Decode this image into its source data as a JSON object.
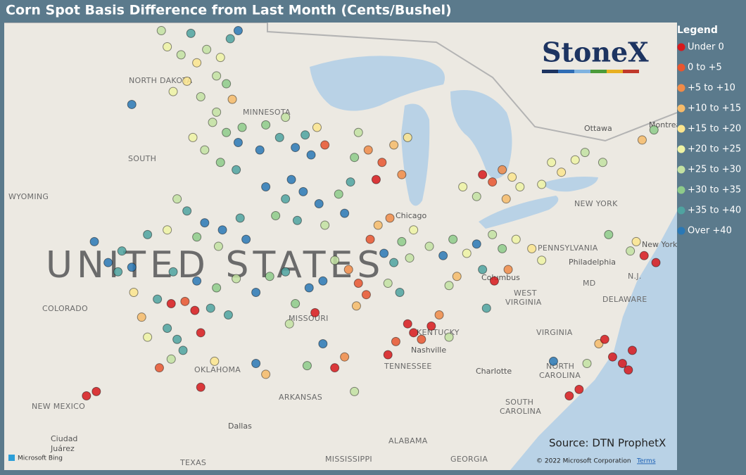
{
  "title": "Corn Spot Basis Difference from Last Month (Cents/Bushel)",
  "legend": {
    "title": "Legend",
    "items": [
      {
        "label": "Under 0",
        "color": "#d7191c"
      },
      {
        "label": "0 to +5",
        "color": "#e8552f"
      },
      {
        "label": "+5 to +10",
        "color": "#f08b48"
      },
      {
        "label": "+10 to +15",
        "color": "#f6bb6a"
      },
      {
        "label": "+15 to +20",
        "color": "#fbe58e"
      },
      {
        "label": "+20 to +25",
        "color": "#eef3a4"
      },
      {
        "label": "+25 to +30",
        "color": "#c3e2a2"
      },
      {
        "label": "+30 to +35",
        "color": "#8ecb8a"
      },
      {
        "label": "+35 to +40",
        "color": "#4fa3a0"
      },
      {
        "label": "Over +40",
        "color": "#2a78b5"
      }
    ]
  },
  "logo": "StoneX",
  "source": "Source: DTN ProphetX",
  "attribution": {
    "bing": "Microsoft Bing",
    "copyright": "© 2022 Microsoft Corporation",
    "terms": "Terms"
  },
  "map": {
    "labels": [
      "NORTH DAKOTA",
      "SOUTH",
      "MINNESOTA",
      "WYOMING",
      "UNITED STATES",
      "COLORADO",
      "MISSOURI",
      "KENTUCKY",
      "TENNESSEE",
      "OKLAHOMA",
      "ARKANSAS",
      "NEW MEXICO",
      "TEXAS",
      "Dallas",
      "Ciudad",
      "Juárez",
      "ALABAMA",
      "MISSISSIPPI",
      "GEORGIA",
      "SOUTH",
      "CAROLINA",
      "NORTH",
      "CAROLINA",
      "VIRGINIA",
      "WEST",
      "VIRGINIA",
      "Columbus",
      "PENNSYLVANIA",
      "NEW YORK",
      "Philadelphia",
      "MD",
      "DELAWARE",
      "Nashville",
      "Charlotte",
      "Chicago",
      "Ottawa",
      "Montreal",
      "New York",
      "N.J."
    ],
    "points": [
      [
        -100.5,
        48.3,
        5
      ],
      [
        -99.8,
        48.0,
        6
      ],
      [
        -99.0,
        47.7,
        4
      ],
      [
        -98.5,
        48.2,
        6
      ],
      [
        -97.8,
        47.9,
        5
      ],
      [
        -97.3,
        48.6,
        8
      ],
      [
        -98.0,
        47.2,
        6
      ],
      [
        -99.5,
        47.0,
        4
      ],
      [
        -100.2,
        46.6,
        5
      ],
      [
        -97.5,
        46.9,
        7
      ],
      [
        -98.8,
        46.4,
        6
      ],
      [
        -97.2,
        46.3,
        3
      ],
      [
        -99.3,
        48.8,
        8
      ],
      [
        -96.9,
        48.9,
        9
      ],
      [
        -102.3,
        46.1,
        9
      ],
      [
        -100.8,
        48.9,
        6
      ],
      [
        -98.2,
        45.4,
        6
      ],
      [
        -97.5,
        45.0,
        7
      ],
      [
        -96.9,
        44.6,
        9
      ],
      [
        -98.6,
        44.3,
        6
      ],
      [
        -97.8,
        43.8,
        7
      ],
      [
        -97.0,
        43.5,
        8
      ],
      [
        -99.2,
        44.8,
        5
      ],
      [
        -98.0,
        45.8,
        6
      ],
      [
        -96.7,
        45.2,
        7
      ],
      [
        -95.5,
        45.3,
        7
      ],
      [
        -94.8,
        44.8,
        8
      ],
      [
        -94.0,
        44.4,
        9
      ],
      [
        -93.5,
        44.9,
        8
      ],
      [
        -95.8,
        44.3,
        9
      ],
      [
        -93.2,
        44.1,
        9
      ],
      [
        -92.5,
        44.5,
        1
      ],
      [
        -94.5,
        45.6,
        6
      ],
      [
        -92.9,
        45.2,
        4
      ],
      [
        -95.5,
        42.8,
        9
      ],
      [
        -94.5,
        42.3,
        8
      ],
      [
        -93.6,
        42.6,
        9
      ],
      [
        -92.8,
        42.1,
        9
      ],
      [
        -91.8,
        42.5,
        7
      ],
      [
        -95.0,
        41.6,
        7
      ],
      [
        -93.9,
        41.4,
        8
      ],
      [
        -92.5,
        41.2,
        6
      ],
      [
        -91.5,
        41.7,
        9
      ],
      [
        -94.2,
        43.1,
        9
      ],
      [
        -91.2,
        43.0,
        8
      ],
      [
        -90.3,
        44.3,
        2
      ],
      [
        -89.6,
        43.8,
        1
      ],
      [
        -89.0,
        44.5,
        3
      ],
      [
        -90.8,
        45.0,
        6
      ],
      [
        -88.6,
        43.3,
        2
      ],
      [
        -89.9,
        43.1,
        0
      ],
      [
        -91.0,
        44.0,
        7
      ],
      [
        -88.3,
        44.8,
        4
      ],
      [
        -99.5,
        41.8,
        8
      ],
      [
        -98.6,
        41.3,
        9
      ],
      [
        -97.7,
        41.0,
        9
      ],
      [
        -96.8,
        41.5,
        8
      ],
      [
        -99.0,
        40.7,
        7
      ],
      [
        -97.9,
        40.3,
        6
      ],
      [
        -100.5,
        41.0,
        5
      ],
      [
        -101.5,
        40.8,
        8
      ],
      [
        -96.5,
        40.6,
        9
      ],
      [
        -100.0,
        42.3,
        6
      ],
      [
        -100.2,
        39.2,
        8
      ],
      [
        -99.0,
        38.8,
        9
      ],
      [
        -98.0,
        38.5,
        7
      ],
      [
        -97.0,
        38.9,
        6
      ],
      [
        -96.0,
        38.3,
        9
      ],
      [
        -95.3,
        39.0,
        7
      ],
      [
        -101.0,
        38.0,
        8
      ],
      [
        -100.3,
        37.8,
        0
      ],
      [
        -99.6,
        37.9,
        1
      ],
      [
        -99.1,
        37.5,
        0
      ],
      [
        -98.3,
        37.6,
        8
      ],
      [
        -97.4,
        37.3,
        8
      ],
      [
        -101.8,
        37.2,
        3
      ],
      [
        -102.2,
        38.3,
        4
      ],
      [
        -103.5,
        39.6,
        9
      ],
      [
        -102.8,
        40.1,
        8
      ],
      [
        -104.2,
        40.5,
        9
      ],
      [
        -103.0,
        39.2,
        8
      ],
      [
        -102.3,
        39.4,
        9
      ],
      [
        -100.5,
        36.7,
        8
      ],
      [
        -100.0,
        36.2,
        8
      ],
      [
        -99.7,
        35.7,
        8
      ],
      [
        -100.3,
        35.3,
        6
      ],
      [
        -101.5,
        36.3,
        5
      ],
      [
        -98.8,
        36.5,
        0
      ],
      [
        -98.1,
        35.2,
        4
      ],
      [
        -100.9,
        34.9,
        1
      ],
      [
        -104.6,
        33.6,
        0
      ],
      [
        -104.1,
        33.8,
        0
      ],
      [
        -98.8,
        34.0,
        0
      ],
      [
        -95.5,
        34.6,
        3
      ],
      [
        -96.0,
        35.1,
        9
      ],
      [
        -93.3,
        38.5,
        9
      ],
      [
        -92.6,
        38.8,
        9
      ],
      [
        -94.0,
        37.8,
        7
      ],
      [
        -93.0,
        37.4,
        0
      ],
      [
        -94.5,
        39.2,
        8
      ],
      [
        -92.0,
        39.7,
        6
      ],
      [
        -91.3,
        39.3,
        2
      ],
      [
        -90.8,
        38.7,
        1
      ],
      [
        -90.4,
        38.2,
        1
      ],
      [
        -90.9,
        37.7,
        3
      ],
      [
        -94.3,
        36.9,
        6
      ],
      [
        -89.5,
        40.0,
        9
      ],
      [
        -89.0,
        39.6,
        8
      ],
      [
        -88.6,
        40.5,
        7
      ],
      [
        -88.2,
        39.8,
        6
      ],
      [
        -89.8,
        41.2,
        3
      ],
      [
        -90.2,
        40.6,
        1
      ],
      [
        -89.2,
        41.5,
        2
      ],
      [
        -88.0,
        41.0,
        5
      ],
      [
        -89.3,
        38.7,
        6
      ],
      [
        -88.7,
        38.3,
        8
      ],
      [
        -87.2,
        40.3,
        6
      ],
      [
        -86.5,
        39.9,
        9
      ],
      [
        -86.0,
        40.6,
        7
      ],
      [
        -85.3,
        40.0,
        5
      ],
      [
        -84.8,
        40.4,
        9
      ],
      [
        -84.0,
        40.8,
        6
      ],
      [
        -83.5,
        40.2,
        7
      ],
      [
        -82.8,
        40.6,
        5
      ],
      [
        -82.0,
        40.2,
        4
      ],
      [
        -81.5,
        39.7,
        5
      ],
      [
        -85.8,
        39.0,
        3
      ],
      [
        -84.5,
        39.3,
        8
      ],
      [
        -83.2,
        39.3,
        2
      ],
      [
        -83.9,
        38.8,
        0
      ],
      [
        -86.2,
        38.6,
        6
      ],
      [
        -84.5,
        43.3,
        0
      ],
      [
        -84.0,
        43.0,
        1
      ],
      [
        -83.5,
        43.5,
        2
      ],
      [
        -83.0,
        43.2,
        4
      ],
      [
        -82.6,
        42.8,
        5
      ],
      [
        -84.8,
        42.4,
        6
      ],
      [
        -85.5,
        42.8,
        5
      ],
      [
        -83.3,
        42.3,
        3
      ],
      [
        -81.0,
        43.8,
        5
      ],
      [
        -80.5,
        43.4,
        4
      ],
      [
        -79.8,
        43.9,
        5
      ],
      [
        -79.3,
        44.2,
        6
      ],
      [
        -81.5,
        42.9,
        5
      ],
      [
        -78.4,
        43.8,
        6
      ],
      [
        -76.4,
        44.7,
        3
      ],
      [
        -75.8,
        45.1,
        7
      ],
      [
        -88.3,
        36.9,
        0
      ],
      [
        -88.0,
        36.5,
        0
      ],
      [
        -87.6,
        36.2,
        1
      ],
      [
        -87.1,
        36.8,
        0
      ],
      [
        -86.7,
        37.3,
        2
      ],
      [
        -88.9,
        36.1,
        1
      ],
      [
        -89.3,
        35.5,
        0
      ],
      [
        -86.2,
        36.3,
        6
      ],
      [
        -84.3,
        37.6,
        8
      ],
      [
        -91.5,
        35.4,
        2
      ],
      [
        -92.0,
        34.9,
        0
      ],
      [
        -92.6,
        36.0,
        9
      ],
      [
        -91.0,
        33.8,
        6
      ],
      [
        -93.4,
        35.0,
        7
      ],
      [
        -77.0,
        40.1,
        6
      ],
      [
        -76.3,
        39.9,
        0
      ],
      [
        -75.7,
        39.6,
        0
      ],
      [
        -78.1,
        40.8,
        7
      ],
      [
        -76.7,
        40.5,
        4
      ],
      [
        -77.9,
        35.4,
        0
      ],
      [
        -77.4,
        35.1,
        0
      ],
      [
        -77.1,
        34.8,
        0
      ],
      [
        -76.9,
        35.7,
        0
      ],
      [
        -78.6,
        36.0,
        3
      ],
      [
        -80.1,
        33.6,
        0
      ],
      [
        -79.6,
        33.9,
        0
      ],
      [
        -80.9,
        35.2,
        9
      ],
      [
        -78.3,
        36.2,
        0
      ],
      [
        -79.2,
        35.1,
        6
      ]
    ]
  }
}
